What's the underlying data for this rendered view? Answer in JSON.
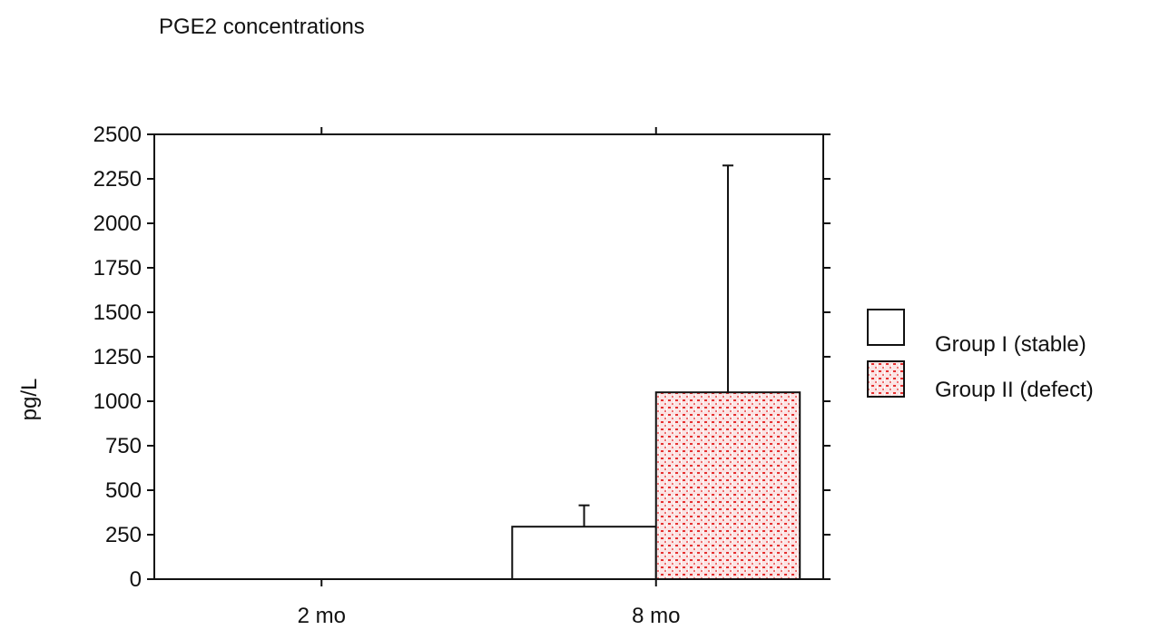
{
  "chart_data": {
    "type": "bar",
    "title": "PGE2 concentrations",
    "xlabel": "",
    "ylabel": "pg/L",
    "categories": [
      "2 mo",
      "8 mo"
    ],
    "ylim": [
      0,
      2500
    ],
    "yticks": [
      0,
      250,
      500,
      750,
      1000,
      1250,
      1500,
      1750,
      2000,
      2250,
      2500
    ],
    "ytick_labels": [
      "0",
      "250",
      "500",
      "750",
      "1000",
      "1250",
      "1500",
      "1750",
      "2000",
      "2250",
      "2500"
    ],
    "grid": false,
    "legend_position": "right",
    "series": [
      {
        "name": "Group I (stable)",
        "values": [
          null,
          295
        ],
        "error_plus": [
          null,
          120
        ],
        "fill": "#ffffff",
        "pattern": "none"
      },
      {
        "name": "Group II (defect)",
        "values": [
          null,
          1050
        ],
        "error_plus": [
          null,
          1275
        ],
        "fill": "#f4a6a6",
        "pattern_color": "#e02020",
        "pattern": "dotted"
      }
    ]
  }
}
